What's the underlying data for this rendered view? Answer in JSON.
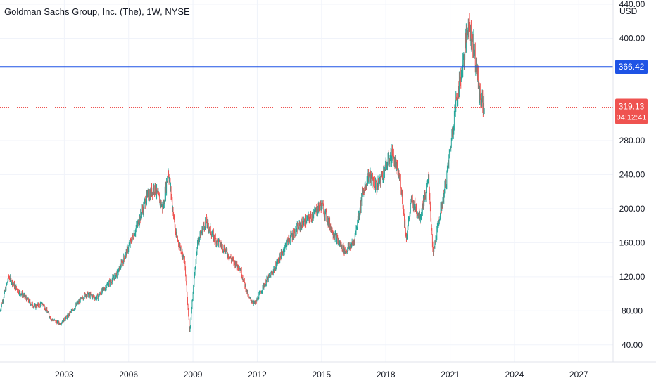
{
  "header": {
    "symbol_title": "Goldman Sachs Group, Inc. (The), 1W, NYSE",
    "currency": "USD"
  },
  "price_lines": {
    "horizontal_level": {
      "label": "366.42",
      "value": 366.42,
      "color": "#1e53e5"
    },
    "last_price": {
      "label": "319.13",
      "value": 319.13,
      "countdown": "04:12:41",
      "color": "#ef5350"
    }
  },
  "colors": {
    "up": "#26a69a",
    "down": "#ef5350",
    "grid": "#f0f3fa",
    "axis_text": "#131722"
  },
  "chart_data": {
    "type": "line",
    "title": "Goldman Sachs Group, Inc. (The), 1W, NYSE",
    "xlabel": "",
    "ylabel": "USD",
    "ylim": [
      20,
      445
    ],
    "xlim": [
      2000.0,
      2028.6
    ],
    "y_ticks": [
      "40.00",
      "80.00",
      "120.00",
      "160.00",
      "200.00",
      "240.00",
      "280.00",
      "400.00",
      "440.00"
    ],
    "x_ticks": [
      "2003",
      "2006",
      "2009",
      "2012",
      "2015",
      "2018",
      "2021",
      "2024",
      "2027"
    ],
    "grid": true,
    "series": [
      {
        "x": [
          2000.0,
          2000.4,
          2000.8,
          2001.2,
          2001.6,
          2002.0,
          2002.4,
          2002.8,
          2003.2,
          2003.6,
          2004.0,
          2004.5,
          2005.0,
          2005.5,
          2006.0,
          2006.4,
          2006.8,
          2007.2,
          2007.6,
          2007.85,
          2008.2,
          2008.6,
          2008.85,
          2009.2,
          2009.6,
          2010.0,
          2010.4,
          2010.8,
          2011.2,
          2011.6,
          2011.9,
          2012.3,
          2012.7,
          2013.0,
          2013.5,
          2014.0,
          2014.5,
          2015.0,
          2015.4,
          2015.8,
          2016.1,
          2016.5,
          2016.9,
          2017.2,
          2017.6,
          2018.0,
          2018.3,
          2018.7,
          2018.95,
          2019.2,
          2019.6,
          2020.0,
          2020.2,
          2020.5,
          2020.8,
          2021.0,
          2021.3,
          2021.6,
          2021.85,
          2022.1,
          2022.4,
          2022.6
        ],
        "values": [
          80,
          120,
          105,
          95,
          85,
          88,
          70,
          65,
          75,
          88,
          100,
          95,
          110,
          125,
          155,
          180,
          210,
          225,
          200,
          245,
          170,
          140,
          55,
          160,
          185,
          165,
          155,
          140,
          130,
          95,
          88,
          110,
          125,
          140,
          165,
          180,
          190,
          205,
          180,
          160,
          150,
          160,
          215,
          240,
          225,
          250,
          265,
          230,
          165,
          210,
          190,
          235,
          145,
          190,
          230,
          270,
          330,
          370,
          420,
          390,
          330,
          319
        ]
      }
    ]
  }
}
